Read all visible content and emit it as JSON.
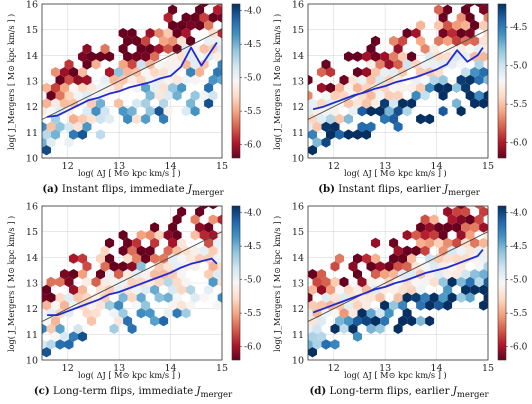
{
  "colors": {
    "trend_line": "#1f2ad6",
    "diagonal": "#444444",
    "grid": "#d9d9d9",
    "cmap": [
      "#67001f",
      "#b2182b",
      "#d6604d",
      "#f4a582",
      "#fddbc7",
      "#f7f7f7",
      "#d1e5f0",
      "#92c5de",
      "#4393c3",
      "#2166ac",
      "#053061"
    ]
  },
  "chart_data": [
    {
      "type": "heatmap",
      "panel_id": "a",
      "caption_label": "(a)",
      "caption_text": "Instant flips, immediate ",
      "caption_sym": "J",
      "caption_sub": "merger",
      "xlabel": "log( ΔJ [ M⊙ kpc km/s ] )",
      "ylabel": "log( J_Mergers [ M⊙ kpc km/s ] )",
      "xlim": [
        11.5,
        15
      ],
      "ylim": [
        10,
        16
      ],
      "xticks": [
        "12",
        "13",
        "14",
        "15"
      ],
      "yticks": [
        "10",
        "11",
        "12",
        "13",
        "14",
        "15",
        "16"
      ],
      "colorbar_ticks": [
        "-4.0",
        "-4.5",
        "-5.0",
        "-5.5",
        "-6.0"
      ],
      "colorbar_range": [
        -6.2,
        -3.9
      ],
      "mean_curve": {
        "x": [
          11.6,
          11.8,
          12.0,
          12.2,
          12.4,
          12.6,
          12.8,
          13.0,
          13.2,
          13.4,
          13.6,
          13.8,
          14.0,
          14.2,
          14.4,
          14.6,
          14.8,
          14.9
        ],
        "y": [
          11.6,
          11.65,
          11.85,
          12.05,
          12.25,
          12.35,
          12.5,
          12.6,
          12.75,
          12.85,
          12.95,
          13.1,
          13.2,
          13.55,
          14.3,
          13.6,
          14.2,
          14.5
        ]
      },
      "diagonal": {
        "x": [
          11.5,
          15
        ],
        "y": [
          11.5,
          15
        ]
      }
    },
    {
      "type": "heatmap",
      "panel_id": "b",
      "caption_label": "(b)",
      "caption_text": "Instant flips, earlier ",
      "caption_sym": "J",
      "caption_sub": "merger",
      "xlabel": "log( ΔJ [ M⊙ kpc km/s ] )",
      "ylabel": "log( J_Mergers [ M⊙ kpc km/s ] )",
      "xlim": [
        11.5,
        15
      ],
      "ylim": [
        10,
        16
      ],
      "xticks": [
        "12",
        "13",
        "14",
        "15"
      ],
      "yticks": [
        "10",
        "11",
        "12",
        "13",
        "14",
        "15",
        "16"
      ],
      "colorbar_ticks": [
        "-4.5",
        "-5.0",
        "-5.5",
        "-6.0"
      ],
      "colorbar_range": [
        -6.2,
        -4.2
      ],
      "mean_curve": {
        "x": [
          11.6,
          11.8,
          12.0,
          12.2,
          12.4,
          12.6,
          12.8,
          13.0,
          13.2,
          13.4,
          13.6,
          13.8,
          14.0,
          14.2,
          14.4,
          14.6,
          14.8,
          14.9
        ],
        "y": [
          11.9,
          12.0,
          12.15,
          12.3,
          12.45,
          12.55,
          12.7,
          12.8,
          12.95,
          13.05,
          13.15,
          13.3,
          13.45,
          13.65,
          14.2,
          13.75,
          14.0,
          14.3
        ]
      },
      "diagonal": {
        "x": [
          11.5,
          15
        ],
        "y": [
          11.5,
          15
        ]
      }
    },
    {
      "type": "heatmap",
      "panel_id": "c",
      "caption_label": "(c)",
      "caption_text": "Long-term flips, immediate ",
      "caption_sym": "J",
      "caption_sub": "merger",
      "xlabel": "log( ΔJ [ M⊙ kpc km/s ] )",
      "ylabel": "log( J_Mergers [ M⊙ kpc km/s ] )",
      "xlim": [
        11.5,
        15
      ],
      "ylim": [
        10,
        16
      ],
      "xticks": [
        "12",
        "13",
        "14",
        "15"
      ],
      "yticks": [
        "10",
        "11",
        "12",
        "13",
        "14",
        "15",
        "16"
      ],
      "colorbar_ticks": [
        "-4.0",
        "-4.5",
        "-5.0",
        "-5.5",
        "-6.0"
      ],
      "colorbar_range": [
        -6.2,
        -3.9
      ],
      "mean_curve": {
        "x": [
          11.6,
          11.8,
          12.0,
          12.2,
          12.4,
          12.6,
          12.8,
          13.0,
          13.2,
          13.4,
          13.6,
          13.8,
          14.0,
          14.2,
          14.4,
          14.6,
          14.8,
          14.9
        ],
        "y": [
          11.75,
          11.75,
          11.9,
          12.05,
          12.2,
          12.35,
          12.55,
          12.65,
          12.8,
          12.95,
          13.1,
          13.25,
          13.4,
          13.6,
          13.75,
          13.85,
          13.95,
          13.75
        ]
      },
      "diagonal": {
        "x": [
          11.5,
          15
        ],
        "y": [
          11.5,
          15
        ]
      }
    },
    {
      "type": "heatmap",
      "panel_id": "d",
      "caption_label": "(d)",
      "caption_text": "Long-term flips, earlier ",
      "caption_sym": "J",
      "caption_sub": "merger",
      "xlabel": "log( ΔJ [ M⊙ kpc km/s ] )",
      "ylabel": "log( J_Mergers [ M⊙ kpc km/s ] )",
      "xlim": [
        11.5,
        15
      ],
      "ylim": [
        10,
        16
      ],
      "xticks": [
        "12",
        "13",
        "14",
        "15"
      ],
      "yticks": [
        "10",
        "11",
        "12",
        "13",
        "14",
        "15",
        "16"
      ],
      "colorbar_ticks": [
        "-4.0",
        "-4.5",
        "-5.0",
        "-5.5",
        "-6.0"
      ],
      "colorbar_range": [
        -6.2,
        -3.9
      ],
      "mean_curve": {
        "x": [
          11.6,
          11.8,
          12.0,
          12.2,
          12.4,
          12.6,
          12.8,
          13.0,
          13.2,
          13.4,
          13.6,
          13.8,
          14.0,
          14.2,
          14.4,
          14.6,
          14.8,
          14.9
        ],
        "y": [
          11.85,
          12.0,
          12.15,
          12.3,
          12.45,
          12.6,
          12.75,
          12.85,
          13.0,
          13.1,
          13.25,
          13.4,
          13.5,
          13.6,
          13.75,
          13.9,
          14.05,
          14.3
        ]
      },
      "diagonal": {
        "x": [
          11.5,
          15
        ],
        "y": [
          11.5,
          15
        ]
      }
    }
  ]
}
